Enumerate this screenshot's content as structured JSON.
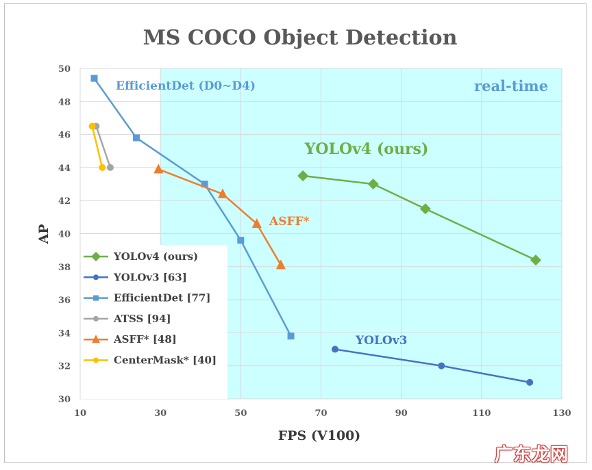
{
  "chart_data": {
    "type": "line",
    "title": "MS COCO Object Detection",
    "xlabel": "FPS (V100)",
    "ylabel": "AP",
    "xlim": [
      10,
      130
    ],
    "ylim": [
      30,
      50
    ],
    "xticks": [
      10,
      30,
      50,
      70,
      90,
      110,
      130
    ],
    "yticks": [
      30,
      32,
      34,
      36,
      38,
      40,
      42,
      44,
      46,
      48,
      50
    ],
    "realtime_region_start_fps": 30,
    "realtime_label": "real-time",
    "series": [
      {
        "name": "YOLOv4 (ours)",
        "color": "#70AD47",
        "marker": "diamond",
        "x": [
          65.5,
          83,
          96,
          123.5
        ],
        "y": [
          43.5,
          43,
          41.5,
          38.4
        ],
        "label": "YOLOv4 (ours)"
      },
      {
        "name": "YOLOv3 [63]",
        "color": "#4472C4",
        "marker": "circle",
        "x": [
          73.5,
          100,
          122
        ],
        "y": [
          33,
          32,
          31
        ],
        "label": "YOLOv3"
      },
      {
        "name": "EfficientDet [77]",
        "color": "#5B9BD5",
        "marker": "square",
        "x": [
          13.5,
          24,
          41,
          50,
          62.5
        ],
        "y": [
          49.4,
          45.8,
          43,
          39.6,
          33.8
        ],
        "label": "EfficientDet (D0~D4)"
      },
      {
        "name": "ATSS [94]",
        "color": "#A5A5A5",
        "marker": "circle",
        "x": [
          14,
          17.5
        ],
        "y": [
          46.5,
          44
        ],
        "label": ""
      },
      {
        "name": "ASFF* [48]",
        "color": "#ED7D31",
        "marker": "triangle",
        "x": [
          29.5,
          45.5,
          54,
          60
        ],
        "y": [
          43.9,
          42.4,
          40.6,
          38.1
        ],
        "label": "ASFF*"
      },
      {
        "name": "CenterMask* [40]",
        "color": "#FFC000",
        "marker": "circle",
        "x": [
          13,
          15.5
        ],
        "y": [
          46.5,
          44
        ],
        "label": ""
      }
    ]
  },
  "watermark": "广东龙网"
}
